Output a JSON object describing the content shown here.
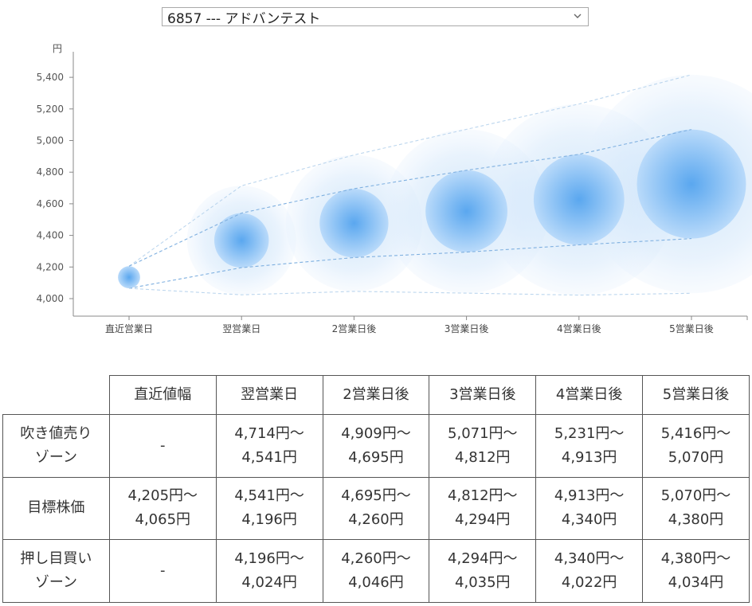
{
  "selector": {
    "selected": "6857 --- アドバンテスト"
  },
  "chart_data": {
    "type": "bubble-forecast",
    "y_unit_label": "円",
    "yticks": [
      "4,000",
      "4,200",
      "4,400",
      "4,600",
      "4,800",
      "5,000",
      "5,200",
      "5,400"
    ],
    "ylim": [
      3900,
      5550
    ],
    "categories": [
      "直近営業日",
      "翌営業日",
      "2営業日後",
      "3営業日後",
      "4営業日後",
      "5営業日後"
    ],
    "series": [
      {
        "name": "吹き値売りゾーン上限",
        "values": [
          4205,
          4714,
          4909,
          5071,
          5231,
          5416
        ]
      },
      {
        "name": "目標株価上限",
        "values": [
          4205,
          4541,
          4695,
          4812,
          4913,
          5070
        ]
      },
      {
        "name": "目標株価下限",
        "values": [
          4065,
          4196,
          4260,
          4294,
          4340,
          4380
        ]
      },
      {
        "name": "押し目買いゾーン下限",
        "values": [
          4065,
          4024,
          4046,
          4035,
          4022,
          4034
        ]
      }
    ]
  },
  "table": {
    "corner": "",
    "headers": [
      "直近値幅",
      "翌営業日",
      "2営業日後",
      "3営業日後",
      "4営業日後",
      "5営業日後"
    ],
    "rows": [
      {
        "label": [
          "吹き値売り",
          "ゾーン"
        ],
        "cells": [
          [
            "-"
          ],
          [
            "4,714円～",
            "4,541円"
          ],
          [
            "4,909円～",
            "4,695円"
          ],
          [
            "5,071円～",
            "4,812円"
          ],
          [
            "5,231円～",
            "4,913円"
          ],
          [
            "5,416円～",
            "5,070円"
          ]
        ]
      },
      {
        "label": [
          "目標株価"
        ],
        "cells": [
          [
            "4,205円～",
            "4,065円"
          ],
          [
            "4,541円～",
            "4,196円"
          ],
          [
            "4,695円～",
            "4,260円"
          ],
          [
            "4,812円～",
            "4,294円"
          ],
          [
            "4,913円～",
            "4,340円"
          ],
          [
            "5,070円～",
            "4,380円"
          ]
        ]
      },
      {
        "label": [
          "押し目買い",
          "ゾーン"
        ],
        "cells": [
          [
            "-"
          ],
          [
            "4,196円～",
            "4,024円"
          ],
          [
            "4,260円～",
            "4,046円"
          ],
          [
            "4,294円～",
            "4,035円"
          ],
          [
            "4,340円～",
            "4,022円"
          ],
          [
            "4,380円～",
            "4,034円"
          ]
        ]
      }
    ]
  }
}
